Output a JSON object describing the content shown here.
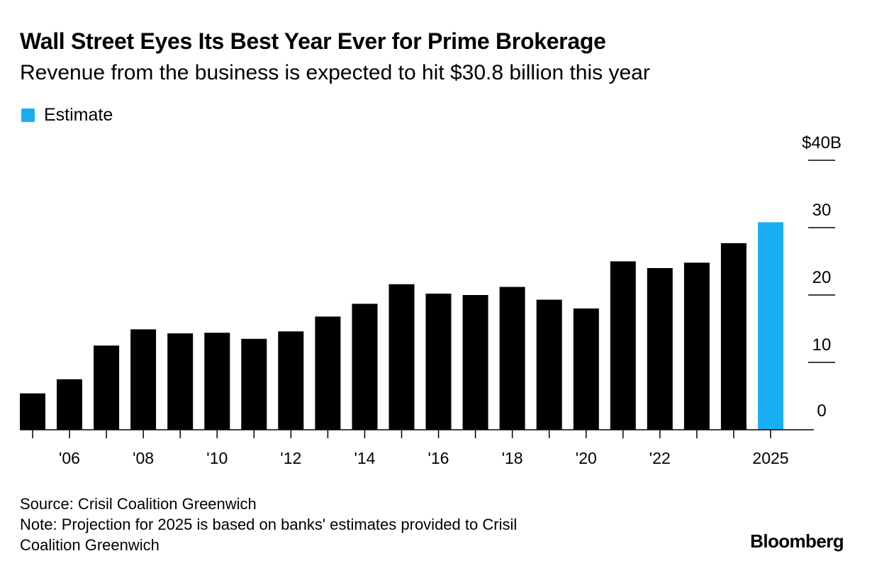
{
  "header": {
    "title": "Wall Street Eyes Its Best Year Ever for Prime Brokerage",
    "subtitle": "Revenue from the business is expected to hit $30.8 billion this year"
  },
  "legend": {
    "items": [
      {
        "label": "Estimate",
        "color": "#1aaff3"
      }
    ]
  },
  "footer": {
    "source": "Source: Crisil Coalition Greenwich",
    "note_line1": "Note: Projection for 2025 is based on banks' estimates provided to Crisil",
    "note_line2": "Coalition Greenwich"
  },
  "brand": {
    "logo": "Bloomberg"
  },
  "colors": {
    "actual": "#000000",
    "estimate": "#1aaff3",
    "axis": "#000000"
  },
  "chart_data": {
    "type": "bar",
    "title": "Wall Street Eyes Its Best Year Ever for Prime Brokerage",
    "subtitle": "Revenue from the business is expected to hit $30.8 billion this year",
    "xlabel": "",
    "ylabel": "",
    "ylim": [
      0,
      40
    ],
    "yticks": [
      {
        "value": 0,
        "label": "0"
      },
      {
        "value": 10,
        "label": "10"
      },
      {
        "value": 20,
        "label": "20"
      },
      {
        "value": 30,
        "label": "30"
      },
      {
        "value": 40,
        "label": "$40B"
      }
    ],
    "categories": [
      "2005",
      "2006",
      "2007",
      "2008",
      "2009",
      "2010",
      "2011",
      "2012",
      "2013",
      "2014",
      "2015",
      "2016",
      "2017",
      "2018",
      "2019",
      "2020",
      "2021",
      "2022",
      "2023",
      "2024",
      "2025"
    ],
    "values": [
      5.4,
      7.5,
      12.5,
      14.9,
      14.3,
      14.4,
      13.5,
      14.6,
      16.8,
      18.7,
      21.6,
      20.2,
      20.0,
      21.2,
      19.3,
      18.0,
      25.0,
      24.0,
      24.8,
      27.7,
      30.8
    ],
    "estimate": [
      false,
      false,
      false,
      false,
      false,
      false,
      false,
      false,
      false,
      false,
      false,
      false,
      false,
      false,
      false,
      false,
      false,
      false,
      false,
      false,
      true
    ],
    "xtick_labels": [
      {
        "index": 1,
        "label": "'06"
      },
      {
        "index": 3,
        "label": "'08"
      },
      {
        "index": 5,
        "label": "'10"
      },
      {
        "index": 7,
        "label": "'12"
      },
      {
        "index": 9,
        "label": "'14"
      },
      {
        "index": 11,
        "label": "'16"
      },
      {
        "index": 13,
        "label": "'18"
      },
      {
        "index": 15,
        "label": "'20"
      },
      {
        "index": 17,
        "label": "'22"
      },
      {
        "index": 20,
        "label": "2025"
      }
    ],
    "legend_position": "top-left",
    "grid": false
  }
}
